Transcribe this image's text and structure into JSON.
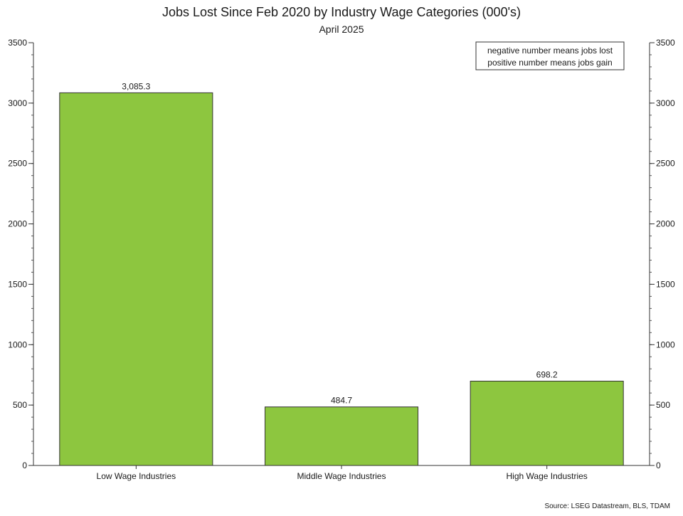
{
  "chart_data": {
    "type": "bar",
    "title": "Jobs Lost Since Feb 2020 by Industry Wage Categories (000's)",
    "subtitle": "April 2025",
    "categories": [
      "Low Wage Industries",
      "Middle Wage Industries",
      "High Wage Industries"
    ],
    "values": [
      3085.3,
      484.7,
      698.2
    ],
    "value_labels": [
      "3,085.3",
      "484.7",
      "698.2"
    ],
    "ylim": [
      0,
      3500
    ],
    "yticks": [
      0,
      500,
      1000,
      1500,
      2000,
      2500,
      3000,
      3500
    ],
    "y_axis_both_sides": true,
    "grid": false,
    "bar_color": "#8dc63f",
    "annotation": [
      "negative number means jobs lost",
      "positive number means jobs gain"
    ],
    "annotation_position": "top-right",
    "source": "Source: LSEG Datastream, BLS, TDAM"
  }
}
